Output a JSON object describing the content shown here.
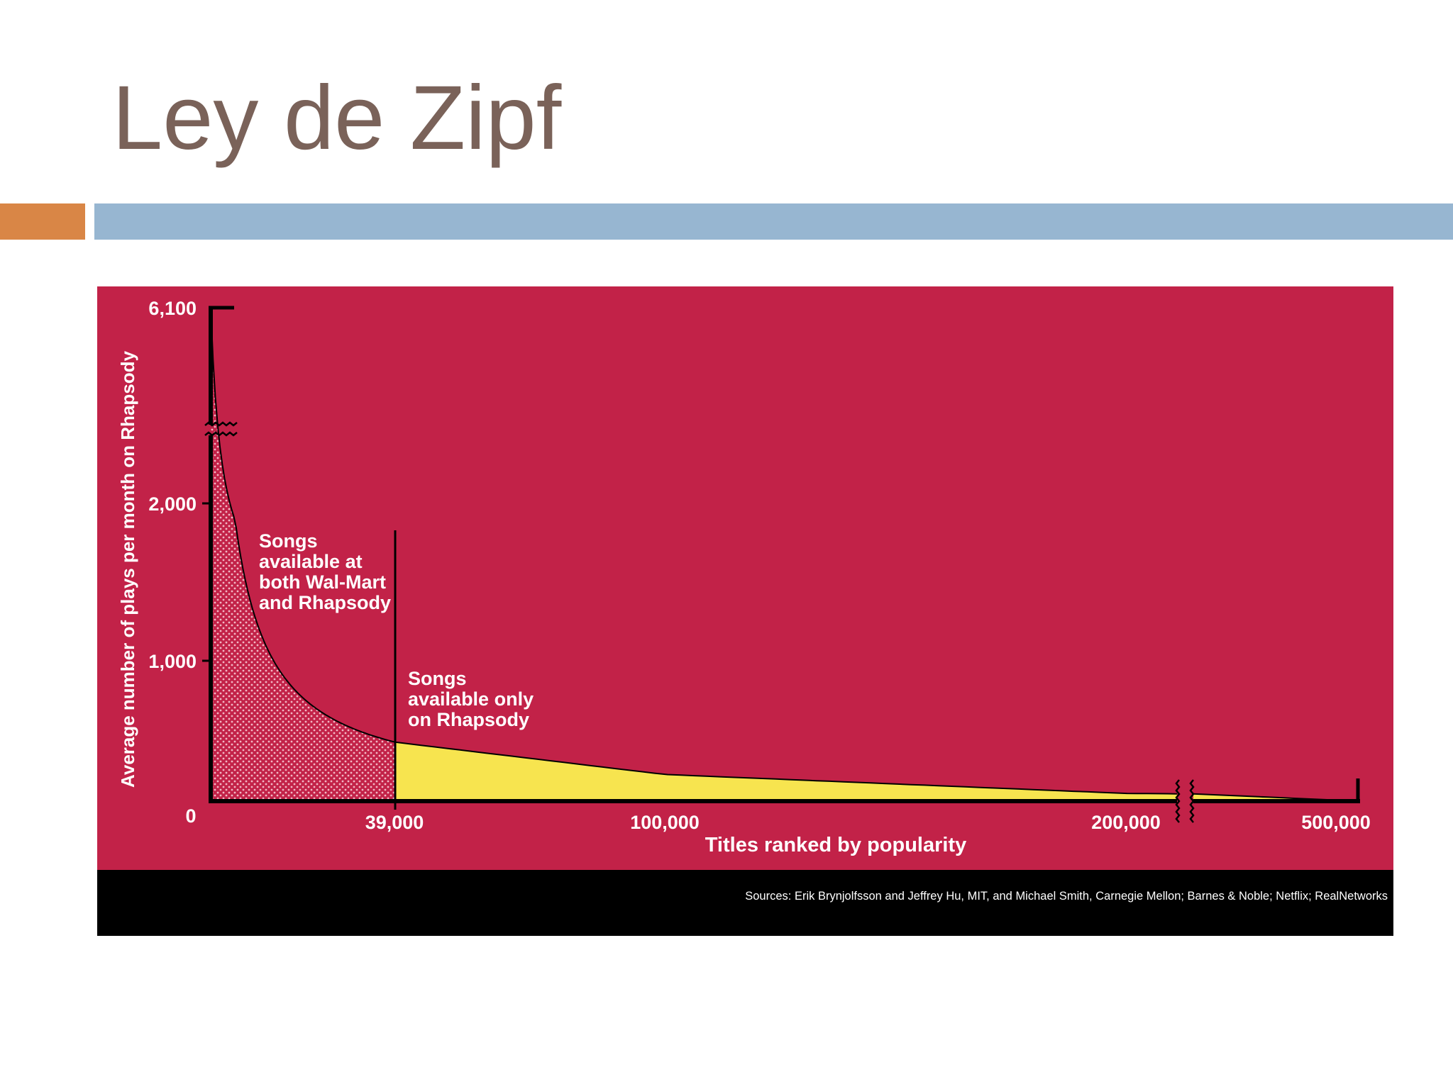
{
  "slide": {
    "title": "Ley de Zipf",
    "colors": {
      "title": "#7a6259",
      "accent_orange": "#d98646",
      "accent_blue": "#97b6d1"
    }
  },
  "chart_data": {
    "type": "area",
    "ylabel": "Average number of plays per month on Rhapsody",
    "xlabel": "Titles ranked by popularity",
    "x_ticks": [
      "0",
      "39,000",
      "100,000",
      "200,000",
      "500,000"
    ],
    "y_ticks": [
      "1,000",
      "2,000",
      "6,100"
    ],
    "x_axis_break_after": "200,000",
    "y_axis_break_below": "6,100",
    "curve": {
      "x": [
        0,
        39000,
        100000,
        200000,
        500000
      ],
      "y": [
        6100,
        420,
        190,
        55,
        0
      ]
    },
    "regions": [
      {
        "label": "Songs available at both Wal-Mart and Rhapsody",
        "label_lines": [
          "Songs",
          "available at",
          "both Wal-Mart",
          "and Rhapsody"
        ],
        "x_range": [
          0,
          39000
        ],
        "fill": "dotted red"
      },
      {
        "label": "Songs available only on Rhapsody",
        "label_lines": [
          "Songs",
          "available only",
          "on Rhapsody"
        ],
        "x_range": [
          39000,
          500000
        ],
        "fill": "#f7e44f"
      }
    ],
    "source": "Sources: Erik Brynjolfsson and Jeffrey Hu, MIT, and Michael Smith, Carnegie Mellon; Barnes & Noble; Netflix; RealNetworks",
    "colors": {
      "background": "#c22248",
      "rhapsody_only_fill": "#f7e44f",
      "axis": "#000000"
    }
  }
}
